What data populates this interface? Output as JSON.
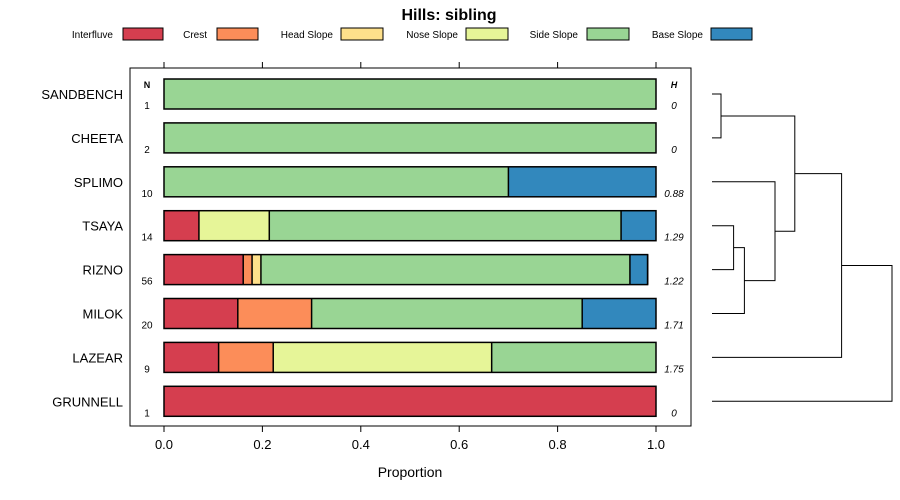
{
  "chart_data": {
    "type": "bar",
    "orientation": "horizontal-stacked",
    "title": "Hills: sibling",
    "xlabel": "Proportion",
    "ylabel": "",
    "xlim": [
      0,
      1
    ],
    "x_ticks": [
      "0.0",
      "0.2",
      "0.4",
      "0.6",
      "0.8",
      "1.0"
    ],
    "x_tick_values": [
      0,
      0.2,
      0.4,
      0.6,
      0.8,
      1.0
    ],
    "n_header": "N",
    "h_header": "H",
    "legend_position": "top",
    "series": [
      {
        "name": "Interfluve",
        "color": "#d53e4f"
      },
      {
        "name": "Crest",
        "color": "#fc8d59"
      },
      {
        "name": "Head Slope",
        "color": "#fee08b"
      },
      {
        "name": "Nose Slope",
        "color": "#e6f598"
      },
      {
        "name": "Side Slope",
        "color": "#99d594"
      },
      {
        "name": "Base Slope",
        "color": "#3288bd"
      }
    ],
    "categories": [
      {
        "label": "SANDBENCH",
        "n": "1",
        "h": "0",
        "values": [
          0,
          0,
          0,
          0,
          1.0,
          0
        ]
      },
      {
        "label": "CHEETA",
        "n": "2",
        "h": "0",
        "values": [
          0,
          0,
          0,
          0,
          1.0,
          0
        ]
      },
      {
        "label": "SPLIMO",
        "n": "10",
        "h": "0.88",
        "values": [
          0,
          0,
          0,
          0,
          0.7,
          0.3
        ]
      },
      {
        "label": "TSAYA",
        "n": "14",
        "h": "1.29",
        "values": [
          0.071,
          0,
          0,
          0.143,
          0.715,
          0.071
        ]
      },
      {
        "label": "RIZNO",
        "n": "56",
        "h": "1.22",
        "values": [
          0.161,
          0.018,
          0.018,
          0,
          0.75,
          0.036
        ]
      },
      {
        "label": "MILOK",
        "n": "20",
        "h": "1.71",
        "values": [
          0.15,
          0.15,
          0,
          0,
          0.55,
          0.15
        ]
      },
      {
        "label": "LAZEAR",
        "n": "9",
        "h": "1.75",
        "values": [
          0.111,
          0.111,
          0,
          0.444,
          0.334,
          0
        ]
      },
      {
        "label": "GRUNNELL",
        "n": "1",
        "h": "0",
        "values": [
          1.0,
          0,
          0,
          0,
          0,
          0
        ]
      }
    ],
    "dendrogram_merges": [
      {
        "a": 0,
        "b": 1,
        "height": 0.05
      },
      {
        "a": 3,
        "b": 4,
        "height": 0.12
      },
      {
        "a": -2,
        "b": 5,
        "height": 0.18
      },
      {
        "a": 2,
        "b": -3,
        "height": 0.35
      },
      {
        "a": -1,
        "b": -4,
        "height": 0.46
      },
      {
        "a": 6,
        "b": -5,
        "height": 0.72
      },
      {
        "a": -6,
        "b": 7,
        "height": 1.0
      }
    ]
  }
}
